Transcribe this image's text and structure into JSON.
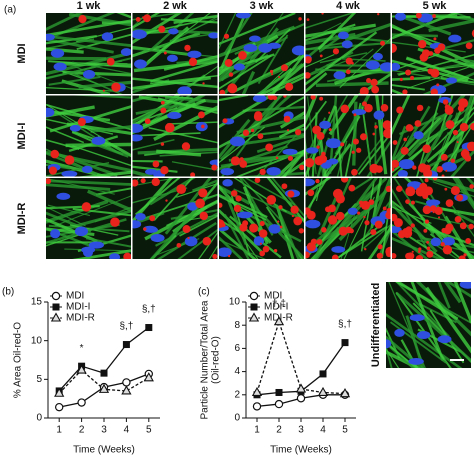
{
  "panel_a": "(a)",
  "image_grid": {
    "columns": [
      "1 wk",
      "2 wk",
      "3 wk",
      "4 wk",
      "5 wk"
    ],
    "rows": [
      "MDI",
      "MDI-I",
      "MDI-R"
    ]
  },
  "undifferentiated_label": "Undifferentiated",
  "chart_data": [
    {
      "type": "line",
      "panel": "(b)",
      "ylabel": [
        "% Area Oil-red-O"
      ],
      "xlabel": "Time (Weeks)",
      "x": [
        1,
        2,
        3,
        4,
        5
      ],
      "xlim": [
        0.5,
        5.5
      ],
      "xticks": [
        1,
        2,
        3,
        4,
        5
      ],
      "ylim": [
        0,
        15
      ],
      "yticks": [
        0,
        5,
        10,
        15
      ],
      "legend": "top-left",
      "series": [
        {
          "name": "MDI",
          "color": "#111111",
          "marker": "circle-open",
          "dashed": false,
          "values": [
            1.4,
            2.0,
            4.0,
            4.6,
            5.7
          ]
        },
        {
          "name": "MDI-I",
          "color": "#111111",
          "marker": "square-filled",
          "dashed": false,
          "values": [
            3.5,
            6.7,
            5.8,
            9.5,
            11.7
          ]
        },
        {
          "name": "MDI-R",
          "color": "#111111",
          "marker": "triangle-open",
          "dashed": true,
          "values": [
            3.2,
            6.2,
            3.7,
            3.5,
            5.2
          ]
        }
      ],
      "annotations": [
        {
          "text": "*",
          "x": 2
        },
        {
          "text": "§,†",
          "x": 4
        },
        {
          "text": "§,†",
          "x": 5
        }
      ]
    },
    {
      "type": "line",
      "panel": "(c)",
      "ylabel": [
        "Particle Number/Total Area",
        "(Oil-red-O)"
      ],
      "xlabel": "Time (Weeks)",
      "x": [
        1,
        2,
        3,
        4,
        5
      ],
      "xlim": [
        0.5,
        5.5
      ],
      "xticks": [
        1,
        2,
        3,
        4,
        5
      ],
      "ylim": [
        0,
        10
      ],
      "yticks": [
        0,
        2,
        4,
        6,
        8,
        10
      ],
      "legend": "top-left",
      "series": [
        {
          "name": "MDI",
          "color": "#111111",
          "marker": "circle-open",
          "dashed": false,
          "values": [
            1.0,
            1.2,
            1.7,
            2.0,
            2.0
          ]
        },
        {
          "name": "MDI-I",
          "color": "#111111",
          "marker": "square-filled",
          "dashed": false,
          "values": [
            2.0,
            2.2,
            2.3,
            3.8,
            6.5
          ]
        },
        {
          "name": "MDI-R",
          "color": "#111111",
          "marker": "triangle-open",
          "dashed": true,
          "values": [
            2.2,
            8.3,
            2.5,
            2.2,
            2.1
          ]
        }
      ],
      "annotations": [
        {
          "text": "†,‡",
          "x": 2
        },
        {
          "text": "§,†",
          "x": 5
        }
      ]
    }
  ]
}
